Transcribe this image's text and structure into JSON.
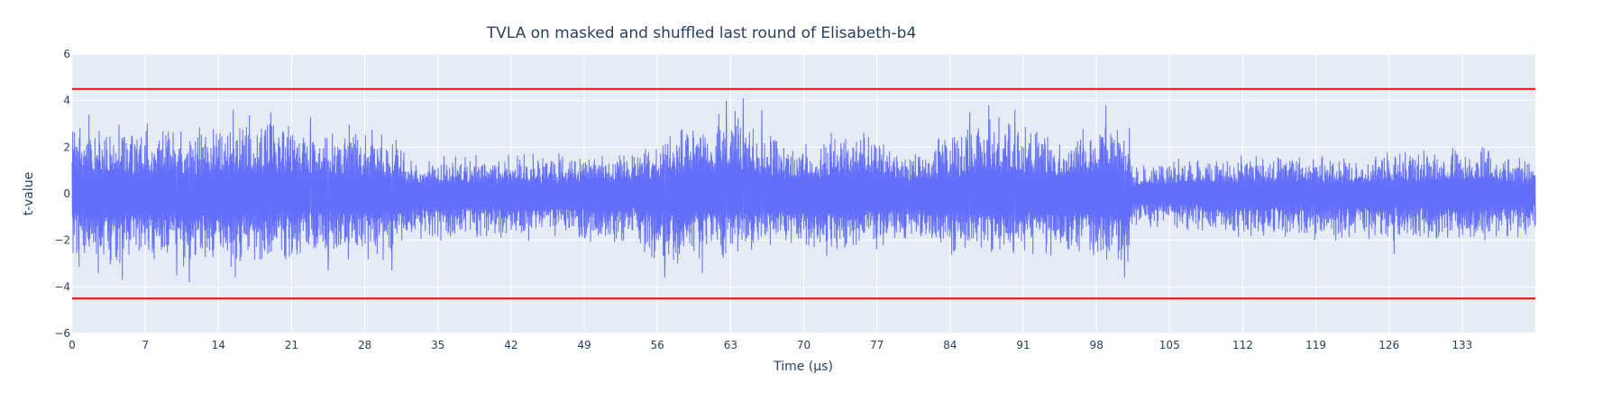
{
  "chart_data": {
    "type": "line",
    "title": "TVLA on masked and shuffled last round of Elisabeth-b4",
    "xlabel": "Time (µs)",
    "ylabel": "t-value",
    "xlim": [
      0,
      140
    ],
    "ylim": [
      -6,
      6
    ],
    "x_ticks": [
      0,
      7,
      14,
      21,
      28,
      35,
      42,
      49,
      56,
      63,
      70,
      77,
      84,
      91,
      98,
      105,
      112,
      119,
      126,
      133
    ],
    "y_ticks": [
      6,
      4,
      2,
      0,
      -2,
      -4,
      -6
    ],
    "y_tick_labels": [
      "6",
      "4",
      "2",
      "0",
      "−2",
      "−4",
      "−6"
    ],
    "grid": true,
    "legend": "none",
    "series": [
      {
        "color": "#636efa",
        "envelope": [
          {
            "x": 0,
            "max": 2.9,
            "min": -3.2
          },
          {
            "x": 4,
            "max": 3.0,
            "min": -3.5
          },
          {
            "x": 8,
            "max": 3.2,
            "min": -3.2
          },
          {
            "x": 12,
            "max": 3.1,
            "min": -3.4
          },
          {
            "x": 17,
            "max": 3.5,
            "min": -3.3
          },
          {
            "x": 22,
            "max": 3.0,
            "min": -2.9
          },
          {
            "x": 27,
            "max": 3.0,
            "min": -2.9
          },
          {
            "x": 31,
            "max": 2.7,
            "min": -3.3
          },
          {
            "x": 32,
            "max": 1.7,
            "min": -2.2
          },
          {
            "x": 36,
            "max": 1.7,
            "min": -2.1
          },
          {
            "x": 42,
            "max": 1.8,
            "min": -2.2
          },
          {
            "x": 48,
            "max": 1.8,
            "min": -2.2
          },
          {
            "x": 54,
            "max": 2.1,
            "min": -2.4
          },
          {
            "x": 57,
            "max": 3.0,
            "min": -3.3
          },
          {
            "x": 60,
            "max": 3.3,
            "min": -3.0
          },
          {
            "x": 64,
            "max": 3.9,
            "min": -2.9
          },
          {
            "x": 66,
            "max": 3.0,
            "min": -2.8
          },
          {
            "x": 70,
            "max": 2.2,
            "min": -2.6
          },
          {
            "x": 74,
            "max": 3.1,
            "min": -2.9
          },
          {
            "x": 77,
            "max": 2.8,
            "min": -2.7
          },
          {
            "x": 80,
            "max": 2.0,
            "min": -2.4
          },
          {
            "x": 84,
            "max": 2.7,
            "min": -2.8
          },
          {
            "x": 88,
            "max": 3.6,
            "min": -3.1
          },
          {
            "x": 91,
            "max": 3.1,
            "min": -3.0
          },
          {
            "x": 95,
            "max": 2.6,
            "min": -2.8
          },
          {
            "x": 99,
            "max": 3.5,
            "min": -3.4
          },
          {
            "x": 101.2,
            "max": 3.3,
            "min": -3.5
          },
          {
            "x": 101.4,
            "max": 1.3,
            "min": -1.5
          },
          {
            "x": 105,
            "max": 1.6,
            "min": -1.6
          },
          {
            "x": 110,
            "max": 1.7,
            "min": -2.0
          },
          {
            "x": 114,
            "max": 1.8,
            "min": -2.1
          },
          {
            "x": 119,
            "max": 1.8,
            "min": -2.1
          },
          {
            "x": 123,
            "max": 1.6,
            "min": -2.1
          },
          {
            "x": 126,
            "max": 2.0,
            "min": -2.3
          },
          {
            "x": 130,
            "max": 2.0,
            "min": -2.2
          },
          {
            "x": 134,
            "max": 2.3,
            "min": -2.5
          },
          {
            "x": 137,
            "max": 1.8,
            "min": -2.1
          },
          {
            "x": 140,
            "max": 1.5,
            "min": -1.9
          }
        ],
        "spikes": [
          {
            "x": 1.6,
            "y": 3.4
          },
          {
            "x": 2.5,
            "y": -3.4
          },
          {
            "x": 4.8,
            "y": -3.7
          },
          {
            "x": 10.0,
            "y": -3.5
          },
          {
            "x": 11.2,
            "y": -3.8
          },
          {
            "x": 15.4,
            "y": 3.6
          },
          {
            "x": 15.6,
            "y": -3.6
          },
          {
            "x": 19.0,
            "y": 3.5
          },
          {
            "x": 22.8,
            "y": 3.3
          },
          {
            "x": 24.5,
            "y": -3.3
          },
          {
            "x": 30.6,
            "y": -3.3
          },
          {
            "x": 56.7,
            "y": -3.6
          },
          {
            "x": 60.3,
            "y": -3.4
          },
          {
            "x": 62.6,
            "y": 4.0
          },
          {
            "x": 64.2,
            "y": 4.1
          },
          {
            "x": 66.0,
            "y": 3.6
          },
          {
            "x": 85.9,
            "y": 3.5
          },
          {
            "x": 87.7,
            "y": 3.8
          },
          {
            "x": 90.2,
            "y": 3.6
          },
          {
            "x": 98.9,
            "y": 3.8
          },
          {
            "x": 100.7,
            "y": -3.6
          },
          {
            "x": 126.5,
            "y": -2.6
          }
        ]
      }
    ],
    "threshold_lines": [
      {
        "y": 4.5,
        "color": "#ff0000"
      },
      {
        "y": -4.5,
        "color": "#ff0000"
      }
    ]
  }
}
